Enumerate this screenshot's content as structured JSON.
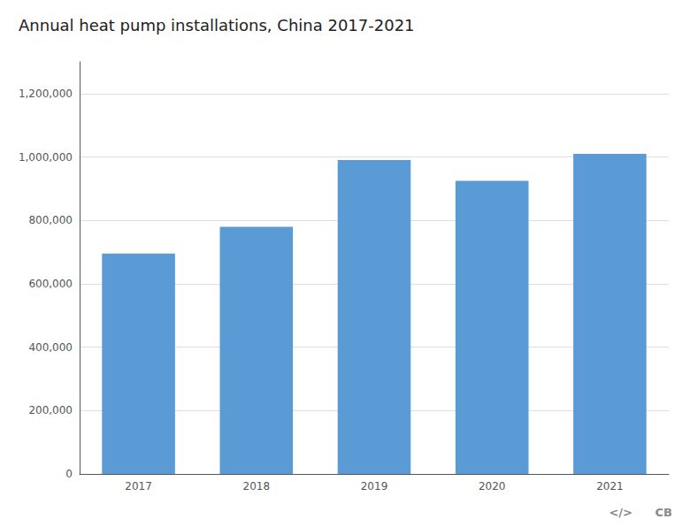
{
  "chart_data": {
    "type": "bar",
    "title": "Annual heat pump installations, China 2017-2021",
    "categories": [
      "2017",
      "2018",
      "2019",
      "2020",
      "2021"
    ],
    "values": [
      695000,
      780000,
      990000,
      925000,
      1010000
    ],
    "color": "#5b9bd5",
    "ylim": [
      0,
      1300000
    ],
    "yticks": [
      0,
      {
        "value": 200000,
        "label": "200,000"
      },
      {
        "value": 400000,
        "label": "400,000"
      },
      {
        "value": 600000,
        "label": "600,000"
      },
      {
        "value": 800000,
        "label": "800,000"
      },
      {
        "value": 1000000,
        "label": "1,000,000"
      },
      {
        "value": 1200000,
        "label": "1,200,000"
      }
    ],
    "grid": true,
    "annotations": [
      "</>",
      "CB"
    ]
  }
}
